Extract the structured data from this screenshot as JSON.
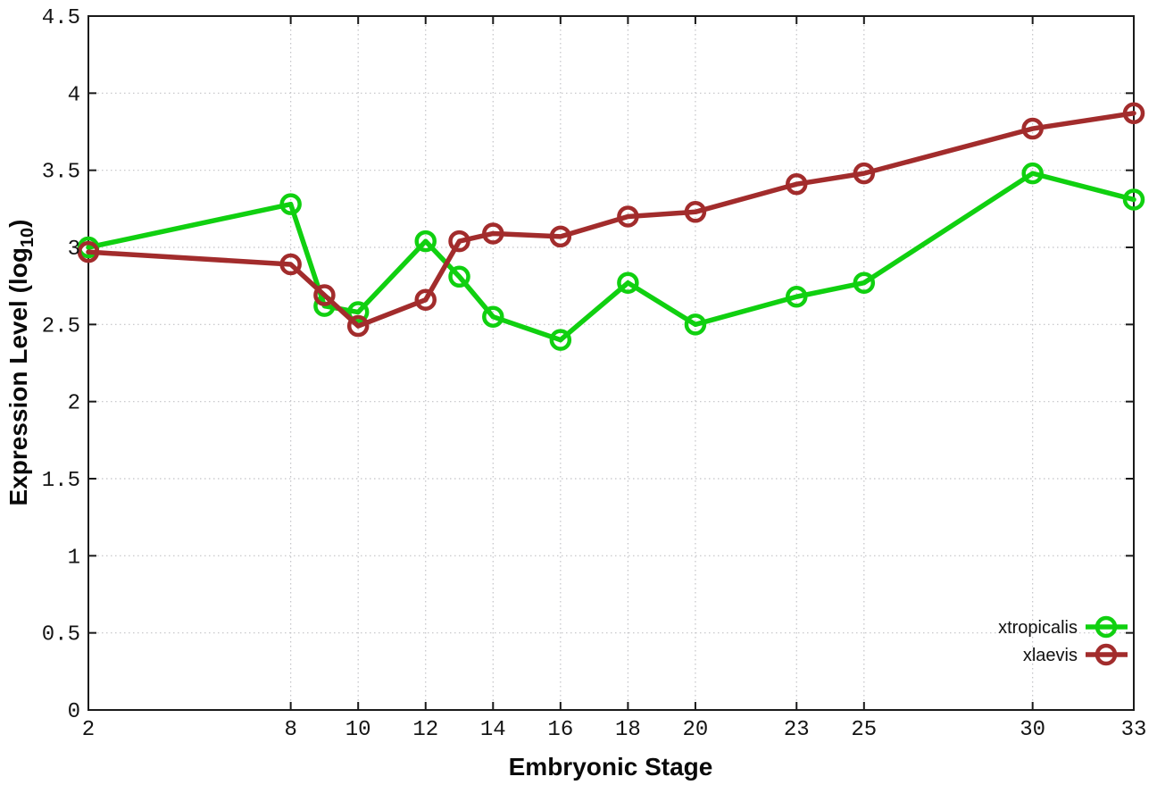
{
  "figure": {
    "background": "#ffffff",
    "border_color": "#1a1a1a",
    "grid_color": "#c2c2c6",
    "tick_label_color": "#151515"
  },
  "chart_data": {
    "type": "line",
    "title": "",
    "xlabel": "Embryonic Stage",
    "ylabel": "Expression Level (log10)",
    "ylabel_parts": {
      "pre": "Expression Level (log",
      "sub": "10",
      "post": ")"
    },
    "x": [
      2,
      8,
      9,
      10,
      12,
      13,
      14,
      16,
      18,
      20,
      23,
      25,
      30,
      33
    ],
    "x_ticks": [
      2,
      8,
      10,
      12,
      14,
      16,
      18,
      20,
      23,
      25,
      30,
      33
    ],
    "y_ticks": [
      0,
      0.5,
      1,
      1.5,
      2,
      2.5,
      3,
      3.5,
      4,
      4.5
    ],
    "xlim": [
      2,
      33
    ],
    "ylim": [
      0,
      4.5
    ],
    "grid": true,
    "legend_position": "bottom-right-inside",
    "series": [
      {
        "name": "xtropicalis",
        "color": "#10d010",
        "marker": "open-circle",
        "values": [
          3.0,
          3.28,
          2.62,
          2.58,
          3.04,
          2.81,
          2.55,
          2.4,
          2.77,
          2.5,
          2.68,
          2.77,
          3.48,
          3.31
        ]
      },
      {
        "name": "xlaevis",
        "color": "#a22c2c",
        "marker": "open-circle",
        "values": [
          2.97,
          2.89,
          2.69,
          2.49,
          2.66,
          3.04,
          3.09,
          3.07,
          3.2,
          3.23,
          3.41,
          3.48,
          3.77,
          3.87
        ]
      }
    ]
  }
}
